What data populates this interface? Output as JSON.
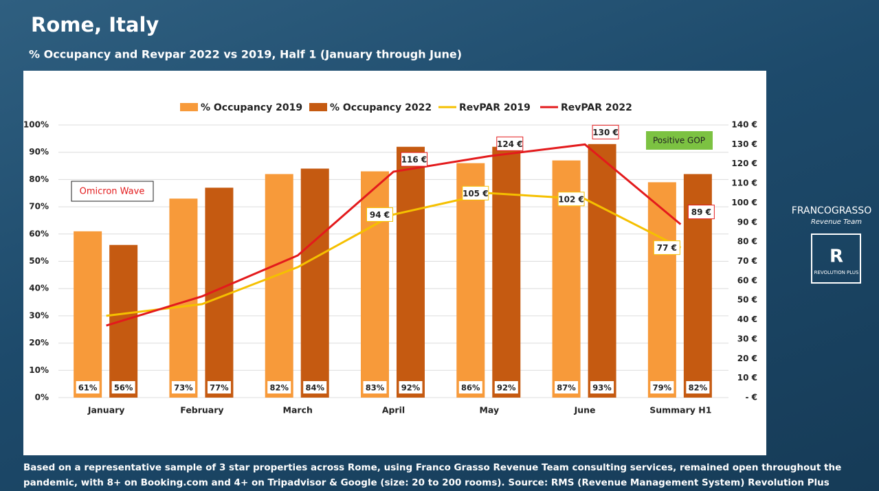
{
  "chart_data": {
    "type": "bar-line",
    "title": "Rome, Italy",
    "subtitle": "% Occupancy and Revpar 2022 vs 2019, Half 1 (January through June)",
    "footnote": "Based on a representative sample of 3 star properties across Rome, using Franco Grasso Revenue Team consulting services, remained open throughout the pandemic, with 8+ on Booking.com and 4+ on Tripadvisor & Google (size: 20 to 200 rooms). Source: RMS (Revenue Management System) Revolution Plus",
    "annotations": [
      "Omicron Wave",
      "Positive GOP"
    ],
    "logos": [
      "FRANCOGRASSO",
      "Revenue Team",
      "R",
      "REVOLUTION PLUS"
    ],
    "categories": [
      "January",
      "February",
      "March",
      "April",
      "May",
      "June",
      "Summary H1"
    ],
    "series": [
      {
        "name": "% Occupancy 2019",
        "kind": "bar",
        "color": "#f79a3a",
        "values": [
          61,
          73,
          82,
          83,
          86,
          87,
          79
        ],
        "value_labels": [
          "61%",
          "73%",
          "82%",
          "83%",
          "86%",
          "87%",
          "79%"
        ]
      },
      {
        "name": "% Occupancy 2022",
        "kind": "bar",
        "color": "#c55a11",
        "values": [
          56,
          77,
          84,
          92,
          92,
          93,
          82
        ],
        "value_labels": [
          "56%",
          "77%",
          "84%",
          "92%",
          "92%",
          "93%",
          "82%"
        ]
      },
      {
        "name": "RevPAR 2019",
        "kind": "line",
        "axis": "y2",
        "color": "#f5c000",
        "values": [
          42,
          48,
          67,
          94,
          105,
          102,
          77
        ],
        "value_labels": [
          null,
          null,
          null,
          "94 €",
          "105 €",
          "102 €",
          "77 €"
        ]
      },
      {
        "name": "RevPAR 2022",
        "kind": "line",
        "axis": "y2",
        "color": "#e31a1c",
        "values": [
          37,
          52,
          73,
          116,
          124,
          130,
          89
        ],
        "value_labels": [
          null,
          null,
          null,
          "116 €",
          "124 €",
          "130 €",
          "89 €"
        ]
      }
    ],
    "ylim": [
      0,
      100
    ],
    "yticks": [
      {
        "value": 0,
        "label": "0%"
      },
      {
        "value": 10,
        "label": "10%"
      },
      {
        "value": 20,
        "label": "20%"
      },
      {
        "value": 30,
        "label": "30%"
      },
      {
        "value": 40,
        "label": "40%"
      },
      {
        "value": 50,
        "label": "50%"
      },
      {
        "value": 60,
        "label": "60%"
      },
      {
        "value": 70,
        "label": "70%"
      },
      {
        "value": 80,
        "label": "80%"
      },
      {
        "value": 90,
        "label": "90%"
      },
      {
        "value": 100,
        "label": "100%"
      }
    ],
    "y2lim": [
      0,
      140
    ],
    "y2ticks": [
      {
        "value": 0,
        "label": "-   €"
      },
      {
        "value": 10,
        "label": "10 €"
      },
      {
        "value": 20,
        "label": "20 €"
      },
      {
        "value": 30,
        "label": "30 €"
      },
      {
        "value": 40,
        "label": "40 €"
      },
      {
        "value": 50,
        "label": "50 €"
      },
      {
        "value": 60,
        "label": "60 €"
      },
      {
        "value": 70,
        "label": "70 €"
      },
      {
        "value": 80,
        "label": "80 €"
      },
      {
        "value": 90,
        "label": "90 €"
      },
      {
        "value": 100,
        "label": "100 €"
      },
      {
        "value": 110,
        "label": "110 €"
      },
      {
        "value": 120,
        "label": "120 €"
      },
      {
        "value": 130,
        "label": "130 €"
      },
      {
        "value": 140,
        "label": "140 €"
      }
    ],
    "grid": true,
    "legend": "top"
  }
}
